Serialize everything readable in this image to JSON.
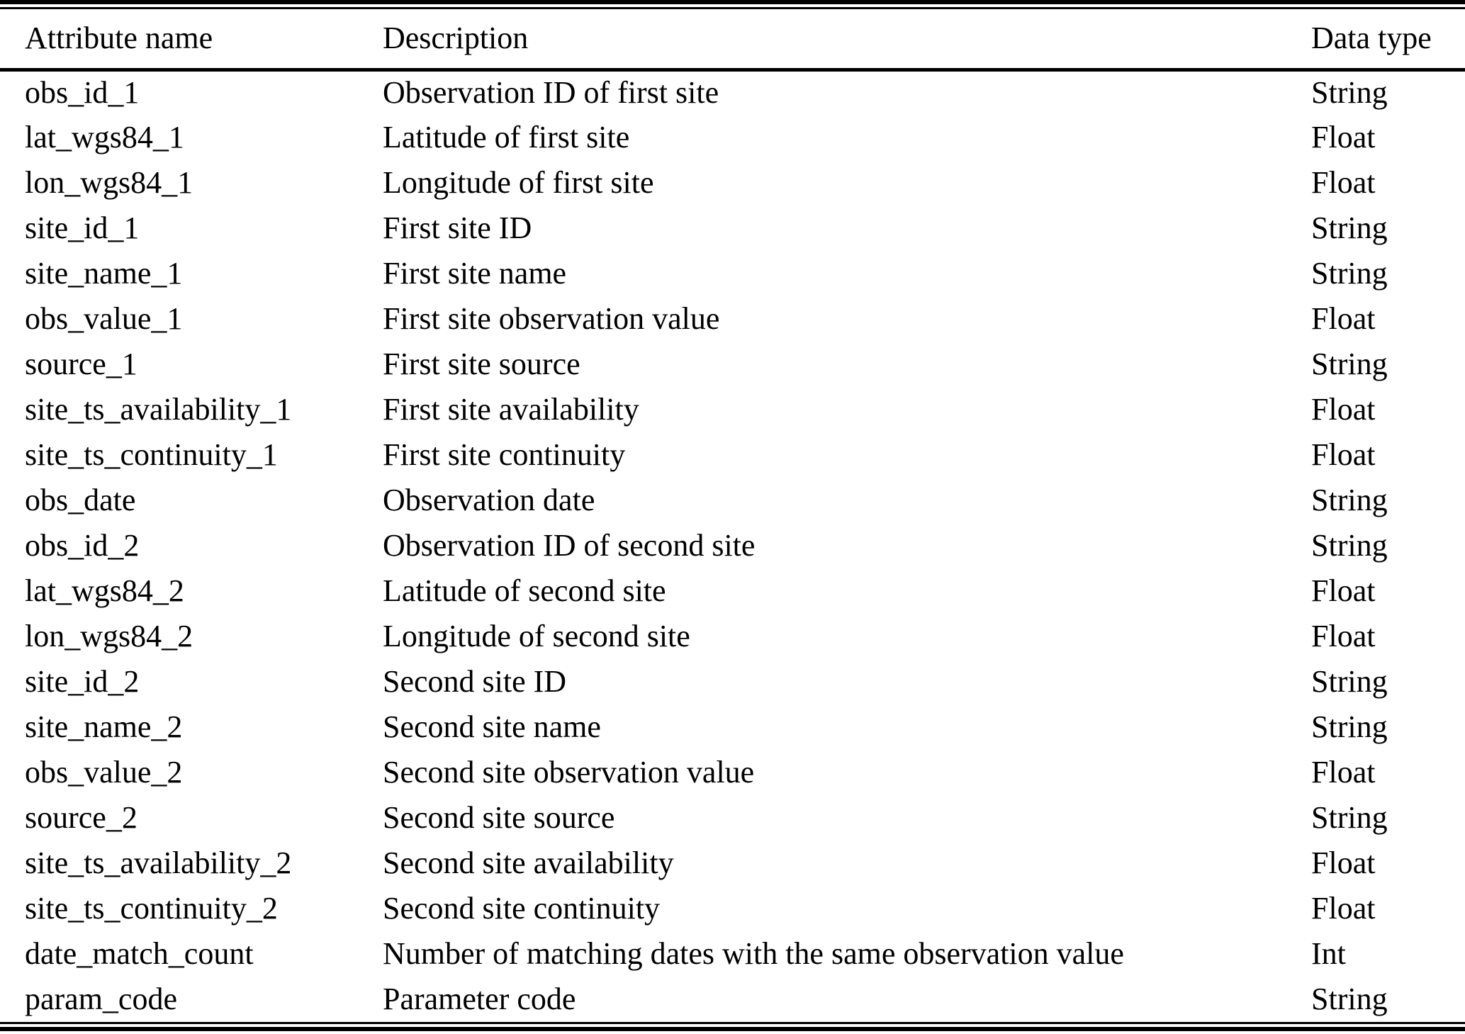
{
  "colors": {
    "text": "#000000",
    "background": "#ffffff",
    "rule": "#000000"
  },
  "table": {
    "columns": {
      "attribute": "Attribute name",
      "description": "Description",
      "data_type": "Data type"
    },
    "rows": [
      {
        "attribute": "obs_id_1",
        "description": "Observation ID of first site",
        "data_type": "String"
      },
      {
        "attribute": "lat_wgs84_1",
        "description": "Latitude of first site",
        "data_type": "Float"
      },
      {
        "attribute": "lon_wgs84_1",
        "description": "Longitude of first site",
        "data_type": "Float"
      },
      {
        "attribute": "site_id_1",
        "description": "First site ID",
        "data_type": "String"
      },
      {
        "attribute": "site_name_1",
        "description": "First site name",
        "data_type": "String"
      },
      {
        "attribute": "obs_value_1",
        "description": "First site observation value",
        "data_type": "Float"
      },
      {
        "attribute": "source_1",
        "description": "First site source",
        "data_type": "String"
      },
      {
        "attribute": "site_ts_availability_1",
        "description": "First site availability",
        "data_type": "Float"
      },
      {
        "attribute": "site_ts_continuity_1",
        "description": "First site continuity",
        "data_type": "Float"
      },
      {
        "attribute": "obs_date",
        "description": "Observation date",
        "data_type": "String"
      },
      {
        "attribute": "obs_id_2",
        "description": "Observation ID of second site",
        "data_type": "String"
      },
      {
        "attribute": "lat_wgs84_2",
        "description": "Latitude of second site",
        "data_type": "Float"
      },
      {
        "attribute": "lon_wgs84_2",
        "description": "Longitude of second site",
        "data_type": "Float"
      },
      {
        "attribute": "site_id_2",
        "description": "Second site ID",
        "data_type": "String"
      },
      {
        "attribute": "site_name_2",
        "description": "Second site name",
        "data_type": "String"
      },
      {
        "attribute": "obs_value_2",
        "description": "Second site observation value",
        "data_type": "Float"
      },
      {
        "attribute": "source_2",
        "description": "Second site source",
        "data_type": "String"
      },
      {
        "attribute": "site_ts_availability_2",
        "description": "Second site availability",
        "data_type": "Float"
      },
      {
        "attribute": "site_ts_continuity_2",
        "description": "Second site continuity",
        "data_type": "Float"
      },
      {
        "attribute": "date_match_count",
        "description": "Number of matching dates with the same observation value",
        "data_type": "Int"
      },
      {
        "attribute": "param_code",
        "description": "Parameter code",
        "data_type": "String"
      }
    ]
  }
}
